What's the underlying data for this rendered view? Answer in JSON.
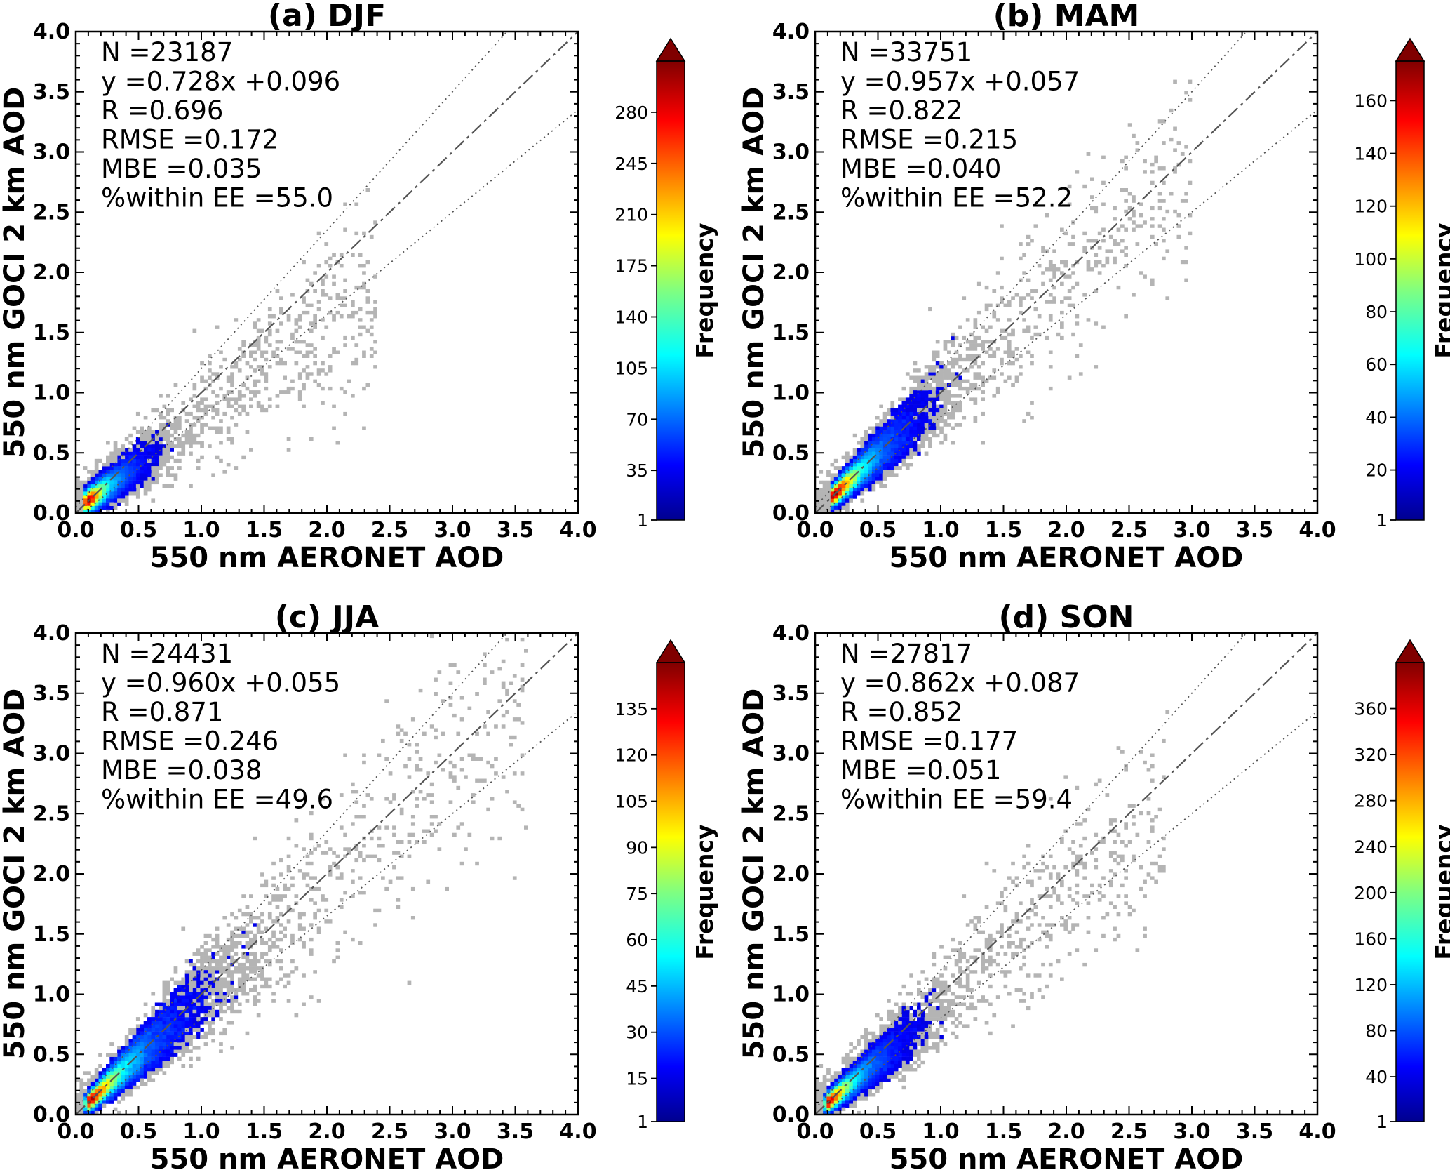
{
  "chart_data": [
    {
      "type": "heatmap",
      "title": "(a) DJF",
      "xlabel": "550 nm AERONET AOD",
      "ylabel": "550 nm GOCI 2 km AOD",
      "xlim": [
        0,
        4
      ],
      "ylim": [
        0,
        4
      ],
      "x_ticks": [
        "0.0",
        "0.5",
        "1.0",
        "1.5",
        "2.0",
        "2.5",
        "3.0",
        "3.5",
        "4.0"
      ],
      "y_ticks": [
        "0.0",
        "0.5",
        "1.0",
        "1.5",
        "2.0",
        "2.5",
        "3.0",
        "3.5",
        "4.0"
      ],
      "stats": [
        "N =23187",
        "y =0.728x +0.096",
        "R =0.696",
        "RMSE =0.172",
        "MBE =0.035",
        "%within EE =55.0"
      ],
      "fit": {
        "slope": 0.728,
        "intercept": 0.096
      },
      "density": {
        "center": [
          0.07,
          0.08
        ],
        "spread_x": 0.55,
        "spread_y": 0.75,
        "rho": 0.55,
        "extent": 1.05,
        "scatter_extent": 2.4
      },
      "colorbar": {
        "label": "Frequency",
        "min": 1,
        "max": 315,
        "ticks": [
          1,
          35,
          70,
          105,
          140,
          175,
          210,
          245,
          280
        ],
        "extend": "max",
        "colormap": "jet"
      },
      "reference_lines": {
        "one_to_one": "dashed",
        "expected_error": "dotted"
      }
    },
    {
      "type": "heatmap",
      "title": "(b) MAM",
      "xlabel": "550 nm AERONET AOD",
      "ylabel": "550 nm GOCI 2 km AOD",
      "xlim": [
        0,
        4
      ],
      "ylim": [
        0,
        4
      ],
      "x_ticks": [
        "0.0",
        "0.5",
        "1.0",
        "1.5",
        "2.0",
        "2.5",
        "3.0",
        "3.5",
        "4.0"
      ],
      "y_ticks": [
        "0.0",
        "0.5",
        "1.0",
        "1.5",
        "2.0",
        "2.5",
        "3.0",
        "3.5",
        "4.0"
      ],
      "stats": [
        "N =33751",
        "y =0.957x +0.057",
        "R =0.822",
        "RMSE =0.215",
        "MBE =0.040",
        "%within EE =52.2"
      ],
      "fit": {
        "slope": 0.957,
        "intercept": 0.057
      },
      "density": {
        "center": [
          0.12,
          0.12
        ],
        "spread_x": 0.9,
        "spread_y": 1.0,
        "rho": 0.8,
        "extent": 1.6,
        "scatter_extent": 3.0
      },
      "colorbar": {
        "label": "Frequency",
        "min": 1,
        "max": 175,
        "ticks": [
          1,
          20,
          40,
          60,
          80,
          100,
          120,
          140,
          160
        ],
        "extend": "max",
        "colormap": "jet"
      },
      "reference_lines": {
        "one_to_one": "dashed",
        "expected_error": "dotted"
      }
    },
    {
      "type": "heatmap",
      "title": "(c) JJA",
      "xlabel": "550 nm AERONET AOD",
      "ylabel": "550 nm GOCI 2 km AOD",
      "xlim": [
        0,
        4
      ],
      "ylim": [
        0,
        4
      ],
      "x_ticks": [
        "0.0",
        "0.5",
        "1.0",
        "1.5",
        "2.0",
        "2.5",
        "3.0",
        "3.5",
        "4.0"
      ],
      "y_ticks": [
        "0.0",
        "0.5",
        "1.0",
        "1.5",
        "2.0",
        "2.5",
        "3.0",
        "3.5",
        "4.0"
      ],
      "stats": [
        "N =24431",
        "y =0.960x +0.055",
        "R =0.871",
        "RMSE =0.246",
        "MBE =0.038",
        "%within EE =49.6"
      ],
      "fit": {
        "slope": 0.96,
        "intercept": 0.055
      },
      "density": {
        "center": [
          0.08,
          0.08
        ],
        "spread_x": 1.2,
        "spread_y": 1.25,
        "rho": 0.87,
        "extent": 2.0,
        "scatter_extent": 3.6
      },
      "colorbar": {
        "label": "Frequency",
        "min": 1,
        "max": 150,
        "ticks": [
          1,
          15,
          30,
          45,
          60,
          75,
          90,
          105,
          120,
          135
        ],
        "extend": "max",
        "colormap": "jet"
      },
      "reference_lines": {
        "one_to_one": "dashed",
        "expected_error": "dotted"
      }
    },
    {
      "type": "heatmap",
      "title": "(d) SON",
      "xlabel": "550 nm AERONET AOD",
      "ylabel": "550 nm GOCI 2 km AOD",
      "xlim": [
        0,
        4
      ],
      "ylim": [
        0,
        4
      ],
      "x_ticks": [
        "0.0",
        "0.5",
        "1.0",
        "1.5",
        "2.0",
        "2.5",
        "3.0",
        "3.5",
        "4.0"
      ],
      "y_ticks": [
        "0.0",
        "0.5",
        "1.0",
        "1.5",
        "2.0",
        "2.5",
        "3.0",
        "3.5",
        "4.0"
      ],
      "stats": [
        "N =27817",
        "y =0.862x +0.087",
        "R =0.852",
        "RMSE =0.177",
        "MBE =0.051",
        "%within EE =59.4"
      ],
      "fit": {
        "slope": 0.862,
        "intercept": 0.087
      },
      "density": {
        "center": [
          0.08,
          0.08
        ],
        "spread_x": 0.8,
        "spread_y": 0.85,
        "rho": 0.85,
        "extent": 1.3,
        "scatter_extent": 2.8
      },
      "colorbar": {
        "label": "Frequency",
        "min": 1,
        "max": 400,
        "ticks": [
          1,
          40,
          80,
          120,
          160,
          200,
          240,
          280,
          320,
          360
        ],
        "extend": "max",
        "colormap": "jet"
      },
      "reference_lines": {
        "one_to_one": "dashed",
        "expected_error": "dotted"
      }
    }
  ]
}
